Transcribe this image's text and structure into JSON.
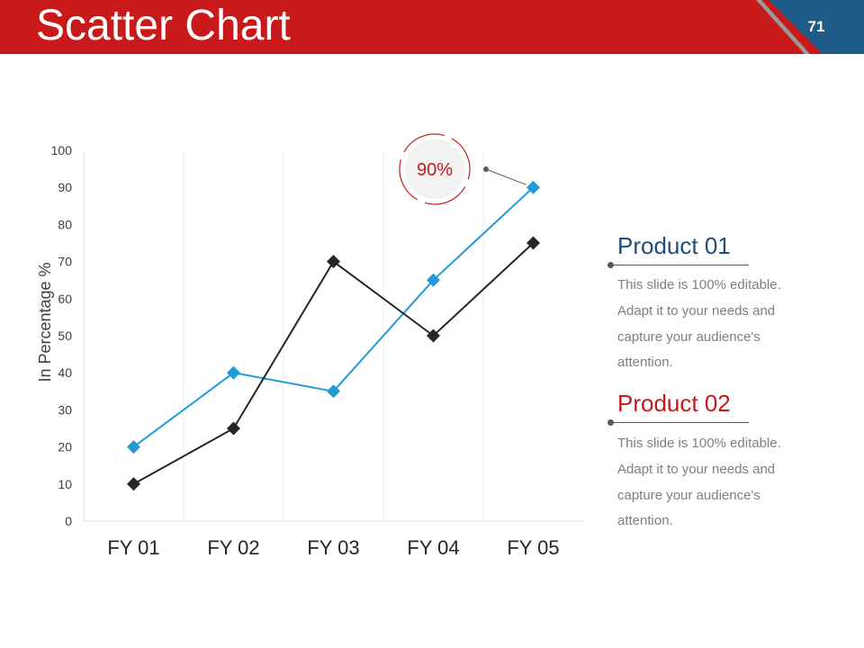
{
  "slide": {
    "title": "Scatter Chart",
    "page_number": "71"
  },
  "colors": {
    "header_red": "#c8191b",
    "corner_blue": "#1e5b86",
    "series_blue": "#1f9bd7",
    "series_black": "#262626",
    "product01_title": "#1f4e79",
    "product02_title": "#c8191b"
  },
  "chart_data": {
    "type": "line",
    "ylabel": "In Percentage %",
    "xlabel": "",
    "categories": [
      "FY 01",
      "FY 02",
      "FY 03",
      "FY 04",
      "FY 05"
    ],
    "ylim": [
      0,
      100
    ],
    "yticks": [
      0,
      10,
      20,
      30,
      40,
      50,
      60,
      70,
      80,
      90,
      100
    ],
    "grid": "vertical",
    "series": [
      {
        "values": [
          20,
          40,
          35,
          65,
          90
        ],
        "color": "#1f9bd7",
        "marker": "diamond"
      },
      {
        "values": [
          10,
          25,
          70,
          50,
          75
        ],
        "color": "#262626",
        "marker": "diamond"
      }
    ],
    "annotation": {
      "text": "90%",
      "category": "FY 05",
      "value": 90
    }
  },
  "products": [
    {
      "title": "Product 01",
      "lines": [
        "This slide is 100% editable.",
        "Adapt it to your needs and",
        "capture your audience's",
        "attention."
      ]
    },
    {
      "title": "Product 02",
      "lines": [
        "This slide is 100% editable.",
        "Adapt it to your needs and",
        "capture your audience's",
        "attention."
      ]
    }
  ]
}
